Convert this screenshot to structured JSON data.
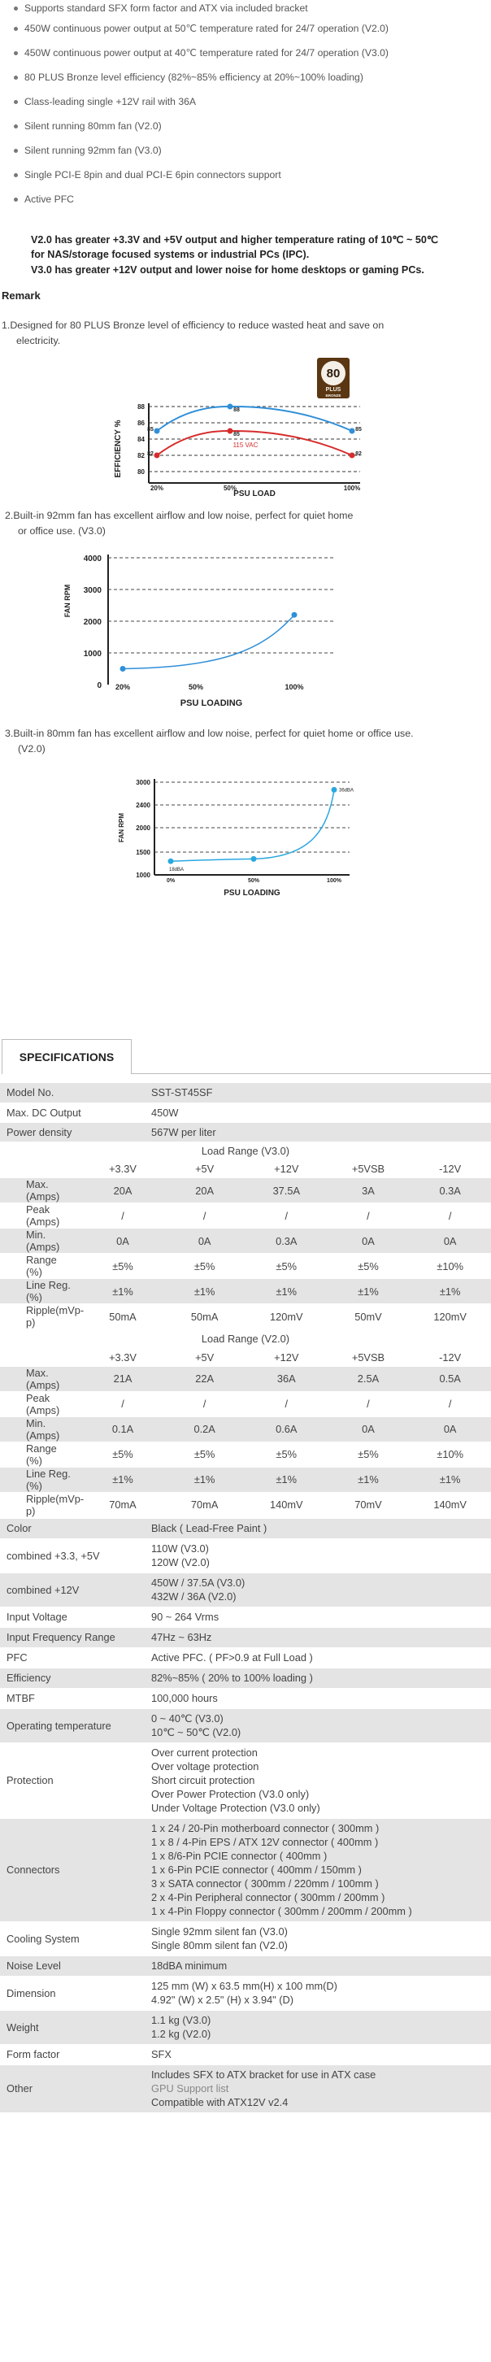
{
  "features": {
    "items": [
      "Supports standard SFX form factor and ATX via included bracket",
      "450W continuous power output at 50℃ temperature rated for 24/7 operation (V2.0)",
      "450W continuous power output at 40℃ temperature rated for 24/7 operation (V3.0)",
      "80 PLUS Bronze level efficiency (82%~85% efficiency at 20%~100% loading)",
      "Class-leading single +12V rail with 36A",
      "Silent running 80mm fan (V2.0)",
      "Silent running 92mm fan (V3.0)",
      "Single PCI-E 8pin and dual PCI-E 6pin connectors support",
      "Active PFC"
    ],
    "note_v2": "V2.0 has greater +3.3V and +5V output and higher temperature rating of 10℃ ~ 50℃",
    "note_v2_cont": "for NAS/storage focused systems or industrial PCs (IPC).",
    "note_v3": "V3.0 has greater +12V output and lower noise for home desktops or gaming PCs."
  },
  "remark": {
    "title": "Remark",
    "note1_line1": "1.Designed for 80 PLUS Bronze level of efficiency to reduce wasted heat and save on",
    "note1_line2": "electricity.",
    "note2_line1": "2.Built-in 92mm fan has excellent airflow and low noise, perfect for quiet home",
    "note2_line2": "or office use. (V3.0)",
    "note3_line1": "3.Built-in 80mm fan has excellent airflow and low noise, perfect for quiet home or office use.",
    "note3_line2": "(V2.0)"
  },
  "badge": {
    "number": "80",
    "plus": "PLUS",
    "level": "BRONZE",
    "color": "#6b3f1a"
  },
  "chart_data": [
    {
      "type": "line",
      "xlabel": "PSU LOAD",
      "ylabel": "EFFICIENCY %",
      "x_ticks": [
        "20%",
        "50%",
        "100%"
      ],
      "y_ticks": [
        "80",
        "82",
        "84",
        "86",
        "88"
      ],
      "ylim": [
        80,
        88
      ],
      "annotation": "115 VAC",
      "series": [
        {
          "color": "#2f8fd8",
          "x": [
            20,
            50,
            100
          ],
          "y": [
            85,
            88,
            85
          ],
          "labels": [
            "85",
            "88",
            "85"
          ]
        },
        {
          "color": "#d62c2c",
          "x": [
            20,
            50,
            100
          ],
          "y": [
            82,
            85,
            82
          ],
          "labels": [
            "82",
            "85",
            "82"
          ]
        }
      ]
    },
    {
      "type": "line",
      "xlabel": "PSU LOADING",
      "ylabel": "FAN RPM",
      "x_ticks": [
        "20%",
        "50%",
        "100%"
      ],
      "y_ticks": [
        "0",
        "1000",
        "2000",
        "3000",
        "4000"
      ],
      "ylim": [
        0,
        4000
      ],
      "series": [
        {
          "color": "#2f8fd8",
          "x": [
            20,
            100
          ],
          "y": [
            500,
            2200
          ]
        }
      ]
    },
    {
      "type": "line",
      "xlabel": "PSU LOADING",
      "ylabel": "FAN RPM",
      "x_ticks": [
        "0%",
        "50%",
        "100%"
      ],
      "y_ticks": [
        "1000",
        "1500",
        "2000",
        "2400",
        "3000"
      ],
      "ylim": [
        1000,
        3000
      ],
      "series": [
        {
          "color": "#29a8e0",
          "x": [
            0,
            50,
            100
          ],
          "y": [
            1300,
            1350,
            2800
          ],
          "labels": [
            "18dBA",
            "",
            "36dBA"
          ]
        }
      ]
    }
  ],
  "specs": {
    "tab": "SPECIFICATIONS",
    "model": {
      "label": "Model No.",
      "value": "SST-ST45SF"
    },
    "max_dc": {
      "label": "Max. DC Output",
      "value": "450W"
    },
    "density": {
      "label": "Power density",
      "value": "567W per liter"
    },
    "load_v3": {
      "title": "Load Range (V3.0)",
      "headers": [
        "+3.3V",
        "+5V",
        "+12V",
        "+5VSB",
        "-12V"
      ],
      "rows": [
        {
          "label": "Max.(Amps)",
          "values": [
            "20A",
            "20A",
            "37.5A",
            "3A",
            "0.3A"
          ]
        },
        {
          "label": "Peak (Amps)",
          "values": [
            "/",
            "/",
            "/",
            "/",
            "/"
          ]
        },
        {
          "label": "Min.(Amps)",
          "values": [
            "0A",
            "0A",
            "0.3A",
            "0A",
            "0A"
          ]
        },
        {
          "label": "Range (%)",
          "values": [
            "±5%",
            "±5%",
            "±5%",
            "±5%",
            "±10%"
          ]
        },
        {
          "label": "Line Reg.(%)",
          "values": [
            "±1%",
            "±1%",
            "±1%",
            "±1%",
            "±1%"
          ]
        },
        {
          "label": "Ripple(mVp-p)",
          "values": [
            "50mA",
            "50mA",
            "120mV",
            "50mV",
            "120mV"
          ]
        }
      ]
    },
    "load_v2": {
      "title": "Load Range (V2.0)",
      "headers": [
        "+3.3V",
        "+5V",
        "+12V",
        "+5VSB",
        "-12V"
      ],
      "rows": [
        {
          "label": "Max.(Amps)",
          "values": [
            "21A",
            "22A",
            "36A",
            "2.5A",
            "0.5A"
          ]
        },
        {
          "label": "Peak (Amps)",
          "values": [
            "/",
            "/",
            "/",
            "/",
            "/"
          ]
        },
        {
          "label": "Min.(Amps)",
          "values": [
            "0.1A",
            "0.2A",
            "0.6A",
            "0A",
            "0A"
          ]
        },
        {
          "label": "Range (%)",
          "values": [
            "±5%",
            "±5%",
            "±5%",
            "±5%",
            "±10%"
          ]
        },
        {
          "label": "Line Reg.(%)",
          "values": [
            "±1%",
            "±1%",
            "±1%",
            "±1%",
            "±1%"
          ]
        },
        {
          "label": "Ripple(mVp-p)",
          "values": [
            "70mA",
            "70mA",
            "140mV",
            "70mV",
            "140mV"
          ]
        }
      ]
    },
    "rows": [
      {
        "label": "Color",
        "lines": [
          "Black ( Lead-Free Paint )"
        ]
      },
      {
        "label": "combined +3.3, +5V",
        "lines": [
          "110W (V3.0)",
          "120W (V2.0)"
        ]
      },
      {
        "label": "combined +12V",
        "lines": [
          "450W / 37.5A (V3.0)",
          "432W / 36A (V2.0)"
        ]
      },
      {
        "label": "Input Voltage",
        "lines": [
          "90 ~ 264 Vrms"
        ]
      },
      {
        "label": "Input Frequency Range",
        "lines": [
          "47Hz ~ 63Hz"
        ]
      },
      {
        "label": "PFC",
        "lines": [
          "Active PFC. ( PF>0.9 at Full Load )"
        ]
      },
      {
        "label": "Efficiency",
        "lines": [
          "82%~85% ( 20% to 100% loading )"
        ]
      },
      {
        "label": "MTBF",
        "lines": [
          "100,000 hours"
        ]
      },
      {
        "label": "Operating temperature",
        "lines": [
          "0 ~ 40℃ (V3.0)",
          "10℃ ~ 50℃ (V2.0)"
        ]
      },
      {
        "label": "Protection",
        "lines": [
          "Over current protection",
          "Over voltage protection",
          "Short circuit protection",
          "Over Power Protection (V3.0 only)",
          "Under Voltage Protection (V3.0 only)"
        ]
      },
      {
        "label": "Connectors",
        "lines": [
          "1 x 24 / 20-Pin motherboard connector ( 300mm )",
          "1 x 8 / 4-Pin EPS / ATX 12V connector ( 400mm )",
          "1 x 8/6-Pin PCIE connector ( 400mm )",
          "1 x 6-Pin PCIE connector ( 400mm / 150mm )",
          "3 x SATA connector ( 300mm / 220mm / 100mm )",
          "2 x 4-Pin Peripheral connector ( 300mm / 200mm )",
          "1 x 4-Pin Floppy connector ( 300mm / 200mm / 200mm )"
        ]
      },
      {
        "label": "Cooling System",
        "lines": [
          "Single 92mm silent fan (V3.0)",
          "Single 80mm silent fan (V2.0)"
        ]
      },
      {
        "label": "Noise Level",
        "lines": [
          "18dBA minimum"
        ]
      },
      {
        "label": "Dimension",
        "lines": [
          "125 mm (W) x 63.5 mm(H) x 100 mm(D)",
          "4.92\" (W) x 2.5\" (H) x 3.94\" (D)"
        ]
      },
      {
        "label": "Weight",
        "lines": [
          "1.1 kg (V3.0)",
          "1.2 kg (V2.0)"
        ]
      },
      {
        "label": "Form factor",
        "lines": [
          "SFX"
        ]
      },
      {
        "label": "Other",
        "lines": [
          "Includes SFX to ATX bracket for use in ATX case",
          "GPU Support list",
          "Compatible with ATX12V v2.4"
        ]
      }
    ]
  }
}
